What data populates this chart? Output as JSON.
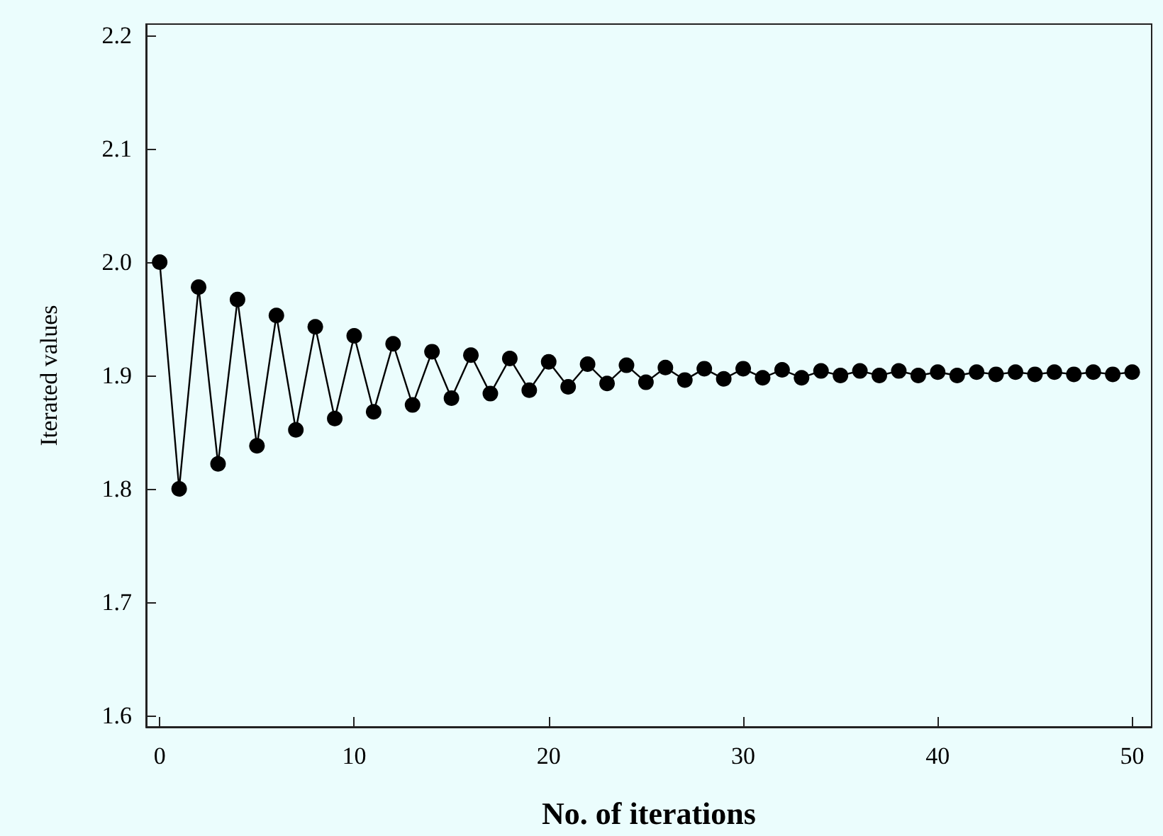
{
  "chart_data": {
    "type": "line",
    "xlabel": "No. of iterations",
    "ylabel": "Iterated values",
    "x": [
      0,
      1,
      2,
      3,
      4,
      5,
      6,
      7,
      8,
      9,
      10,
      11,
      12,
      13,
      14,
      15,
      16,
      17,
      18,
      19,
      20,
      21,
      22,
      23,
      24,
      25,
      26,
      27,
      28,
      29,
      30,
      31,
      32,
      33,
      34,
      35,
      36,
      37,
      38,
      39,
      40,
      41,
      42,
      43,
      44,
      45,
      46,
      47,
      48,
      49,
      50
    ],
    "series": [
      {
        "color": "#000000",
        "values": [
          2.0,
          1.8,
          1.978,
          1.822,
          1.967,
          1.838,
          1.953,
          1.852,
          1.943,
          1.862,
          1.935,
          1.868,
          1.928,
          1.874,
          1.921,
          1.88,
          1.918,
          1.884,
          1.915,
          1.887,
          1.912,
          1.89,
          1.91,
          1.893,
          1.909,
          1.894,
          1.907,
          1.896,
          1.906,
          1.897,
          1.906,
          1.898,
          1.905,
          1.898,
          1.904,
          1.9,
          1.904,
          1.9,
          1.904,
          1.9,
          1.903,
          1.9,
          1.903,
          1.901,
          1.903,
          1.901,
          1.903,
          1.901,
          1.903,
          1.901,
          1.903
        ]
      }
    ],
    "xlim": [
      -0.7,
      51
    ],
    "xticks": [
      0,
      10,
      20,
      30,
      40,
      50
    ],
    "ylim": [
      1.59,
      2.21
    ],
    "yticks": [
      1.6,
      1.7,
      1.8,
      1.9,
      {
        "value": 2,
        "label": "2.0"
      },
      2.1,
      2.2
    ],
    "marker": "circle",
    "line_style": "solid"
  }
}
